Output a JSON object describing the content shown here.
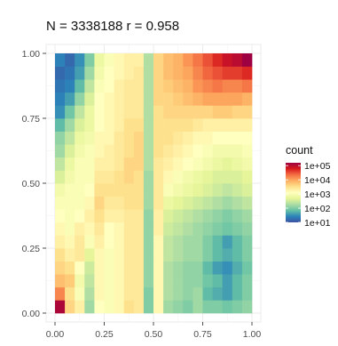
{
  "chart_data": {
    "type": "heatmap",
    "title": "N = 3338188 r = 0.958",
    "xlabel": "",
    "ylabel": "",
    "xlim": [
      0,
      1
    ],
    "ylim": [
      0,
      1
    ],
    "x_ticks": [
      "0.00",
      "0.25",
      "0.50",
      "0.75",
      "1.00"
    ],
    "y_ticks": [
      "0.00",
      "0.25",
      "0.50",
      "0.75",
      "1.00"
    ],
    "grid": true,
    "bins": 20,
    "legend": {
      "title": "count",
      "placement": "right",
      "scale": "log10",
      "labels": [
        "1e+05",
        "1e+04",
        "1e+03",
        "1e+02",
        "1e+01"
      ],
      "colors": [
        "#3d52a1",
        "#2b83ba",
        "#66c2a5",
        "#abdda4",
        "#e6f598",
        "#ffffbf",
        "#fee08b",
        "#fdae61",
        "#f46d43",
        "#d7191c",
        "#9e0142"
      ]
    },
    "log10_counts_by_row": [
      [
        5.1,
        3.6,
        3.3,
        2.2,
        3.1,
        3.0,
        3.2,
        3.5,
        3.4,
        2.0,
        3.2,
        2.2,
        2.1,
        2.0,
        2.2,
        2.0,
        2.0,
        1.9,
        2.0,
        2.1
      ],
      [
        4.2,
        3.5,
        3.0,
        2.3,
        3.2,
        3.0,
        3.2,
        3.4,
        3.4,
        2.0,
        3.2,
        2.3,
        2.2,
        2.1,
        2.2,
        1.8,
        1.7,
        1.6,
        1.8,
        2.0
      ],
      [
        3.8,
        3.7,
        2.9,
        2.4,
        3.2,
        3.0,
        3.2,
        3.4,
        3.4,
        2.1,
        3.2,
        2.3,
        2.2,
        2.1,
        2.1,
        1.9,
        1.8,
        1.6,
        1.8,
        2.0
      ],
      [
        3.6,
        3.5,
        3.1,
        2.5,
        3.2,
        3.0,
        3.2,
        3.4,
        3.4,
        2.1,
        3.2,
        2.3,
        2.2,
        2.1,
        2.1,
        1.8,
        1.6,
        1.5,
        1.7,
        1.9
      ],
      [
        3.5,
        3.3,
        3.4,
        2.7,
        3.2,
        3.0,
        3.2,
        3.4,
        3.4,
        2.1,
        3.2,
        2.4,
        2.3,
        2.2,
        2.2,
        2.0,
        1.8,
        1.7,
        1.8,
        2.0
      ],
      [
        3.3,
        3.2,
        3.4,
        3.0,
        3.3,
        3.1,
        3.2,
        3.4,
        3.4,
        2.1,
        3.2,
        2.4,
        2.3,
        2.2,
        2.2,
        2.0,
        1.8,
        1.6,
        1.8,
        2.0
      ],
      [
        3.2,
        3.0,
        3.3,
        3.2,
        3.4,
        3.1,
        3.2,
        3.4,
        3.4,
        2.1,
        3.3,
        2.5,
        2.4,
        2.3,
        2.2,
        2.1,
        2.0,
        1.9,
        2.0,
        2.1
      ],
      [
        3.1,
        3.0,
        3.1,
        3.3,
        3.5,
        3.3,
        3.3,
        3.4,
        3.4,
        2.1,
        3.3,
        2.6,
        2.5,
        2.4,
        2.3,
        2.2,
        2.1,
        2.0,
        2.1,
        2.2
      ],
      [
        3.0,
        3.0,
        3.0,
        3.2,
        3.6,
        3.4,
        3.4,
        3.5,
        3.5,
        2.2,
        3.4,
        2.8,
        2.7,
        2.6,
        2.5,
        2.4,
        2.3,
        2.2,
        2.3,
        2.4
      ],
      [
        2.9,
        3.0,
        3.0,
        3.1,
        3.5,
        3.5,
        3.5,
        3.5,
        3.5,
        2.2,
        3.4,
        3.0,
        2.9,
        2.8,
        2.7,
        2.6,
        2.5,
        2.4,
        2.5,
        2.6
      ],
      [
        2.6,
        2.9,
        3.0,
        3.0,
        3.4,
        3.4,
        3.5,
        3.6,
        3.5,
        2.2,
        3.4,
        3.2,
        3.0,
        2.9,
        2.8,
        2.7,
        2.6,
        2.6,
        2.6,
        2.7
      ],
      [
        2.4,
        2.8,
        3.0,
        3.0,
        3.3,
        3.3,
        3.4,
        3.6,
        3.6,
        2.3,
        3.4,
        3.3,
        3.2,
        3.1,
        3.0,
        2.9,
        2.8,
        2.7,
        2.8,
        2.9
      ],
      [
        2.2,
        2.6,
        2.9,
        3.0,
        3.2,
        3.3,
        3.4,
        3.5,
        3.6,
        2.3,
        3.5,
        3.4,
        3.3,
        3.2,
        3.1,
        3.0,
        2.9,
        2.9,
        2.9,
        3.0
      ],
      [
        2.1,
        2.4,
        2.8,
        2.9,
        3.2,
        3.2,
        3.4,
        3.5,
        3.6,
        2.3,
        3.5,
        3.5,
        3.4,
        3.3,
        3.2,
        3.2,
        3.1,
        3.1,
        3.1,
        3.1
      ],
      [
        1.8,
        2.2,
        2.6,
        2.8,
        3.1,
        3.2,
        3.3,
        3.5,
        3.5,
        2.3,
        3.5,
        3.5,
        3.5,
        3.5,
        3.4,
        3.3,
        3.3,
        3.3,
        3.3,
        3.3
      ],
      [
        1.5,
        1.9,
        2.4,
        2.8,
        3.1,
        3.2,
        3.3,
        3.4,
        3.4,
        2.3,
        3.5,
        3.6,
        3.6,
        3.6,
        3.6,
        3.6,
        3.7,
        3.7,
        3.6,
        3.6
      ],
      [
        1.4,
        1.6,
        2.1,
        2.6,
        3.1,
        3.2,
        3.3,
        3.4,
        3.4,
        2.3,
        3.6,
        3.6,
        3.7,
        3.8,
        3.9,
        4.0,
        4.0,
        4.0,
        4.0,
        3.9
      ],
      [
        1.3,
        1.4,
        1.8,
        2.4,
        3.0,
        3.1,
        3.3,
        3.4,
        3.4,
        2.3,
        3.6,
        3.7,
        3.8,
        3.9,
        4.1,
        4.2,
        4.3,
        4.2,
        4.2,
        4.3
      ],
      [
        1.2,
        1.3,
        1.6,
        2.2,
        2.9,
        3.1,
        3.2,
        3.3,
        3.4,
        2.3,
        3.6,
        3.8,
        3.9,
        4.0,
        4.2,
        4.4,
        4.5,
        4.6,
        4.6,
        4.7
      ],
      [
        1.4,
        1.2,
        1.5,
        2.0,
        2.8,
        3.0,
        3.2,
        3.3,
        3.3,
        2.3,
        3.6,
        3.8,
        3.9,
        4.1,
        4.3,
        4.5,
        4.7,
        4.9,
        5.0,
        5.2
      ]
    ]
  }
}
